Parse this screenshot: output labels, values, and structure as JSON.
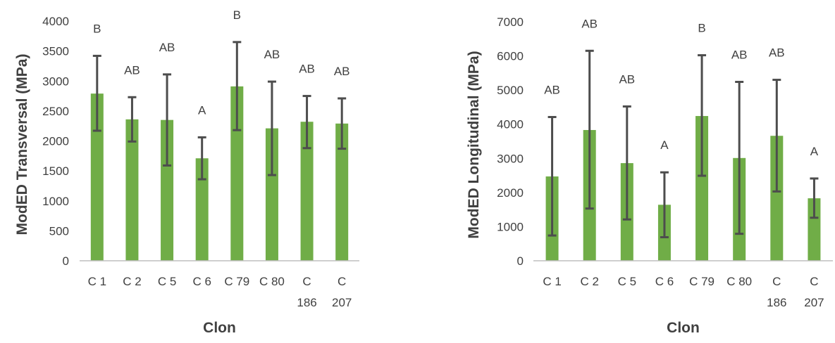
{
  "colors": {
    "bar": "#70ad47",
    "error_bar": "#4d4d4d",
    "axis": "#bfbfbf",
    "text": "#404040"
  },
  "chart_data": [
    {
      "type": "bar",
      "xlabel": "Clon",
      "ylabel": "ModED Transversal (MPa)",
      "categories": [
        "C 1",
        "C 2",
        "C 5",
        "C 6",
        "C 79",
        "C 80",
        "C 186",
        "C 207"
      ],
      "values": [
        2790,
        2360,
        2350,
        1710,
        2910,
        2210,
        2320,
        2290
      ],
      "error_low": [
        2170,
        1990,
        1590,
        1360,
        2180,
        1430,
        1880,
        1870
      ],
      "error_high": [
        3420,
        2730,
        3110,
        2060,
        3650,
        2990,
        2750,
        2710
      ],
      "letters": [
        "B",
        "AB",
        "AB",
        "A",
        "B",
        "AB",
        "AB",
        "AB"
      ],
      "ylim": [
        0,
        4000
      ],
      "yticks": [
        0,
        500,
        1000,
        1500,
        2000,
        2500,
        3000,
        3500,
        4000
      ],
      "grid": false,
      "legend": false
    },
    {
      "type": "bar",
      "xlabel": "Clon",
      "ylabel": "ModED Longitudinal (MPa)",
      "categories": [
        "C 1",
        "C 2",
        "C 5",
        "C 6",
        "C 79",
        "C 80",
        "C 186",
        "C 207"
      ],
      "values": [
        2470,
        3830,
        2860,
        1640,
        4240,
        3010,
        3660,
        1830
      ],
      "error_low": [
        740,
        1530,
        1210,
        690,
        2490,
        790,
        2030,
        1260
      ],
      "error_high": [
        4210,
        6150,
        4520,
        2590,
        6020,
        5240,
        5300,
        2410
      ],
      "letters": [
        "AB",
        "AB",
        "AB",
        "A",
        "B",
        "AB",
        "AB",
        "A"
      ],
      "ylim": [
        0,
        7000
      ],
      "yticks": [
        0,
        1000,
        2000,
        3000,
        4000,
        5000,
        6000,
        7000
      ],
      "grid": false,
      "legend": false
    }
  ]
}
